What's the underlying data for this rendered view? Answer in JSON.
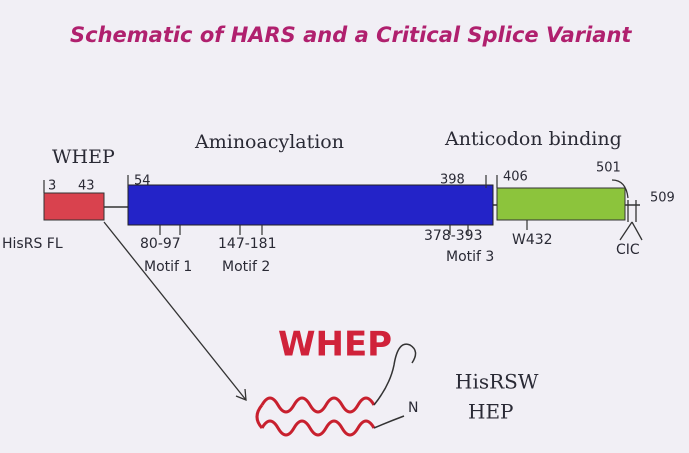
{
  "title": "Schematic of HARS and a Critical Splice Variant",
  "domains": [
    {
      "label": "WHEP"
    },
    {
      "label": "Aminoacylation"
    },
    {
      "label": "Anticodon binding"
    }
  ],
  "positions": [
    "3",
    "43",
    "54",
    "398",
    "406",
    "501",
    "509"
  ],
  "full_length_label": "HisRS FL",
  "motifs": [
    {
      "range": "80-97",
      "label": "Motif 1"
    },
    {
      "range": "147-181",
      "label": "Motif 2"
    },
    {
      "range": "378-393",
      "label": "Motif 3"
    }
  ],
  "residue": "W432",
  "cic_label": "CIC",
  "variant": {
    "domain_label": "WHEP",
    "terminus": "N",
    "name_lines": [
      "HisRSW",
      "HEP"
    ]
  }
}
